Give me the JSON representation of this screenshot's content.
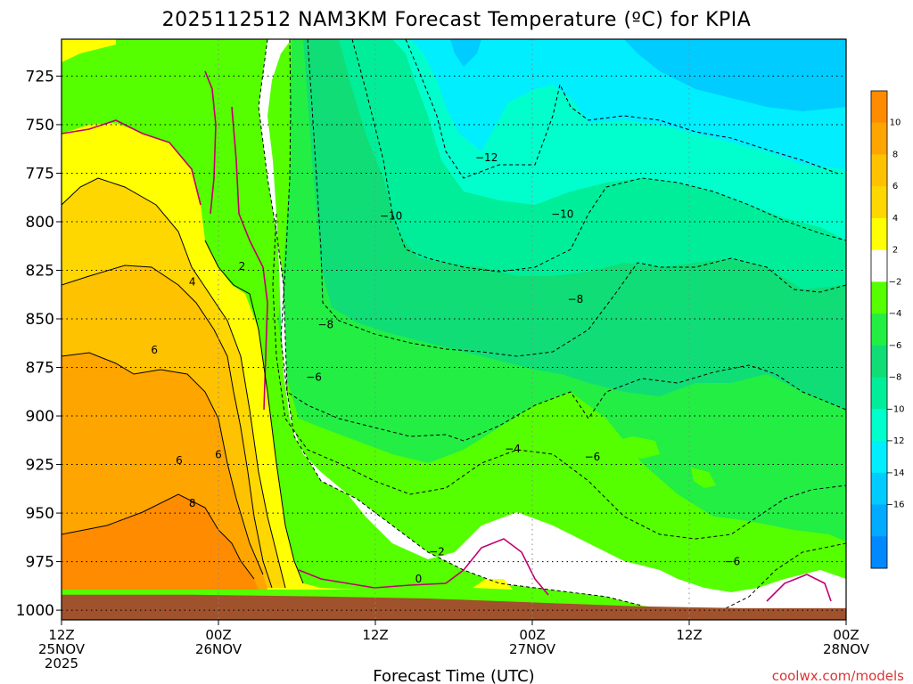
{
  "chart_data": {
    "type": "contour",
    "title": "2025112512 NAM3KM Forecast Temperature (ºC) for KPIA",
    "xlabel": "Forecast Time (UTC)",
    "ylabel": "",
    "y_axis": {
      "ticks": [
        725,
        750,
        775,
        800,
        825,
        850,
        875,
        900,
        925,
        950,
        975,
        1000
      ],
      "range": [
        1005,
        706
      ],
      "grid": true
    },
    "x_axis": {
      "ticks": [
        {
          "hour": 0,
          "lines": [
            "12Z",
            "25NOV",
            "2025"
          ]
        },
        {
          "hour": 12,
          "lines": [
            "00Z",
            "26NOV"
          ]
        },
        {
          "hour": 24,
          "lines": [
            "12Z"
          ]
        },
        {
          "hour": 36,
          "lines": [
            "00Z",
            "27NOV"
          ]
        },
        {
          "hour": 48,
          "lines": [
            "12Z"
          ]
        },
        {
          "hour": 60,
          "lines": [
            "00Z",
            "28NOV"
          ]
        }
      ],
      "range": [
        0,
        60
      ],
      "grid": true
    },
    "colorbar": {
      "labels": [
        "10",
        "8",
        "6",
        "4",
        "2",
        "−2",
        "−4",
        "−6",
        "−8",
        "−10",
        "−12",
        "−14",
        "−16"
      ],
      "colors": [
        "#ff8c00",
        "#ffa500",
        "#ffc200",
        "#ffd700",
        "#ffff00",
        "#ffffff",
        "#55ff00",
        "#22ee44",
        "#11dd77",
        "#00ee99",
        "#00ffcc",
        "#00eeff",
        "#00ccff",
        "#00aaff",
        "#0088ff"
      ]
    },
    "contour_labels": [
      {
        "text": "−12",
        "hour": 32.5,
        "p": 767
      },
      {
        "text": "−10",
        "hour": 25.2,
        "p": 797
      },
      {
        "text": "−10",
        "hour": 38.3,
        "p": 796
      },
      {
        "text": "2",
        "hour": 13.8,
        "p": 823
      },
      {
        "text": "4",
        "hour": 10.0,
        "p": 831
      },
      {
        "text": "−8",
        "hour": 39.3,
        "p": 840
      },
      {
        "text": "−8",
        "hour": 20.2,
        "p": 853
      },
      {
        "text": "6",
        "hour": 7.1,
        "p": 866
      },
      {
        "text": "−6",
        "hour": 19.3,
        "p": 880
      },
      {
        "text": "−4",
        "hour": 34.5,
        "p": 917
      },
      {
        "text": "−6",
        "hour": 40.6,
        "p": 921
      },
      {
        "text": "6",
        "hour": 12.0,
        "p": 920
      },
      {
        "text": "6",
        "hour": 9.0,
        "p": 923
      },
      {
        "text": "8",
        "hour": 10.0,
        "p": 945
      },
      {
        "text": "−2",
        "hour": 28.7,
        "p": 970
      },
      {
        "text": "−6",
        "hour": 51.3,
        "p": 975
      },
      {
        "text": "0",
        "hour": 27.3,
        "p": 984
      }
    ],
    "ground_pressure": [
      {
        "hour": 0,
        "p": 992
      },
      {
        "hour": 10,
        "p": 992
      },
      {
        "hour": 20,
        "p": 993
      },
      {
        "hour": 28,
        "p": 994
      },
      {
        "hour": 36,
        "p": 996
      },
      {
        "hour": 44,
        "p": 998
      },
      {
        "hour": 52,
        "p": 999
      },
      {
        "hour": 60,
        "p": 999
      }
    ]
  },
  "watermark": "coolwx.com/models"
}
